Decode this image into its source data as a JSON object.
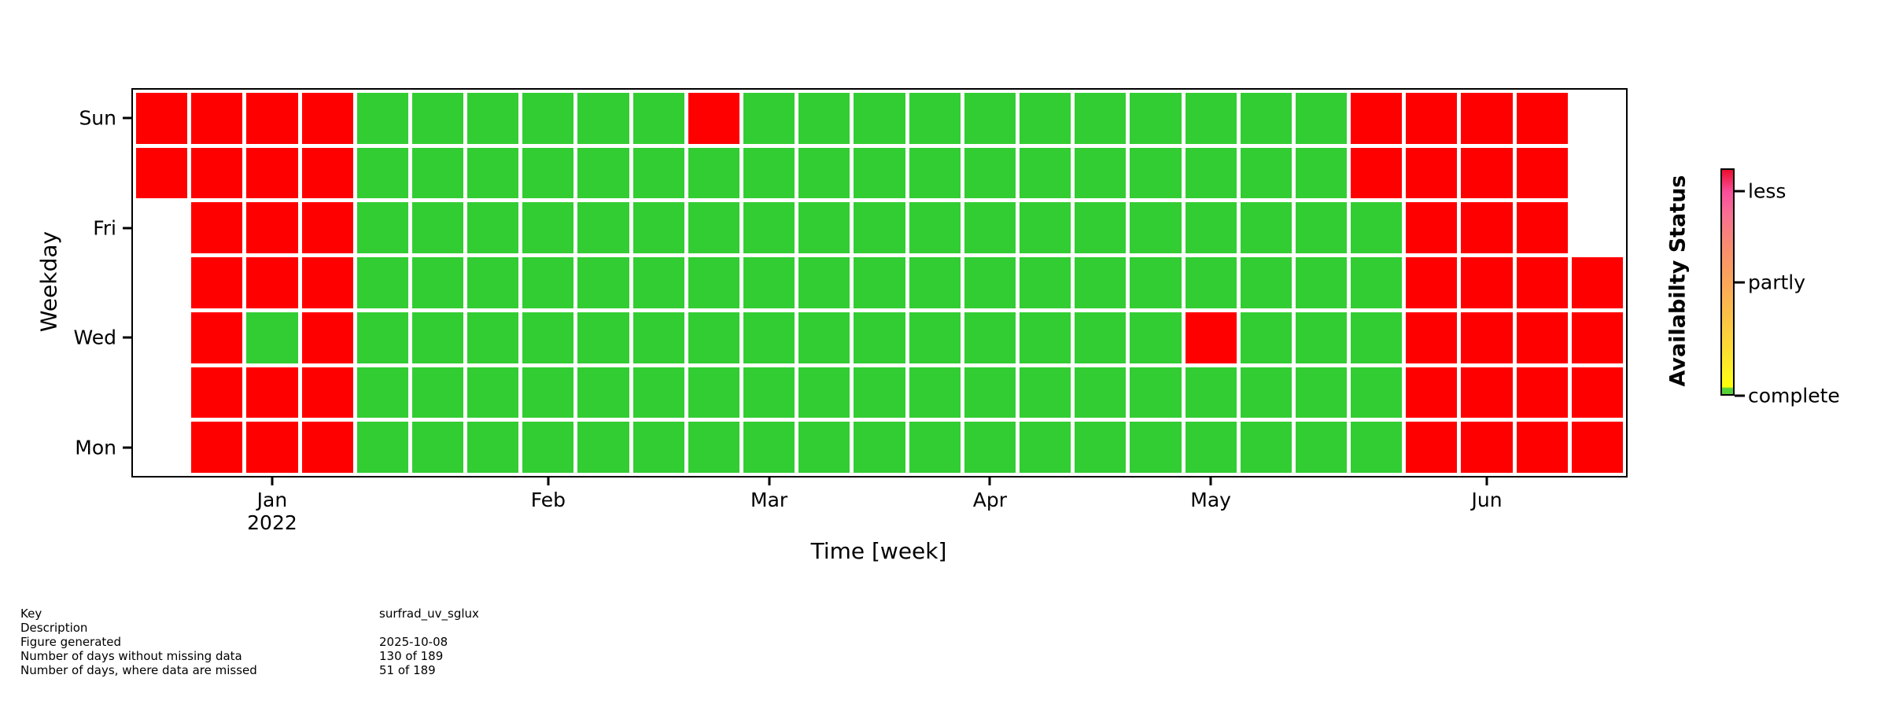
{
  "plot": {
    "x_axis": {
      "label": "Time [week]",
      "ticks": [
        {
          "label": "Jan",
          "sublabel": "2022",
          "col": 2
        },
        {
          "label": "Feb",
          "col": 7
        },
        {
          "label": "Mar",
          "col": 11
        },
        {
          "label": "Apr",
          "col": 15
        },
        {
          "label": "May",
          "col": 19
        },
        {
          "label": "Jun",
          "col": 24
        }
      ]
    },
    "y_axis": {
      "label": "Weekday",
      "ticks": [
        {
          "label": "Sun",
          "row": 0
        },
        {
          "label": "Fri",
          "row": 2
        },
        {
          "label": "Wed",
          "row": 4
        },
        {
          "label": "Mon",
          "row": 6
        }
      ]
    },
    "grid": {
      "columns": 27,
      "row_names": [
        "Sun",
        "Sat",
        "Fri",
        "Thu",
        "Wed",
        "Tue",
        "Mon"
      ],
      "rows": [
        "RRRRGGGGGGRGGGGGGGGGGGRRRR.",
        "RRRRGGGGGGGGGGGGGGGGGGRRRR.",
        ".RRRGGGGGGGGGGGGGGGGGGGRRR.",
        ".RRRGGGGGGGGGGGGGGGGGGGRRRR",
        ".RGRGGGGGGGGGGGGGGGRGGGRRRR",
        ".RRRGGGGGGGGGGGGGGGGGGGRRRR",
        ".RRRGGGGGGGGGGGGGGGGGGGRRRR"
      ],
      "colors": {
        "G": "#32cd32",
        "R": "#ff0000"
      }
    }
  },
  "colorbar": {
    "label": "Availabilty Status",
    "ticks": [
      {
        "label": "less",
        "pos": 0.1
      },
      {
        "label": "partly",
        "pos": 0.5
      },
      {
        "label": "complete",
        "pos": 1.0
      }
    ],
    "gradient": [
      [
        "#ed0e2e",
        "0%"
      ],
      [
        "#f94f9d",
        "10%"
      ],
      [
        "#f96f92",
        "20%"
      ],
      [
        "#f98e6d",
        "35%"
      ],
      [
        "#faa65a",
        "50%"
      ],
      [
        "#fbc147",
        "65%"
      ],
      [
        "#fcdc33",
        "80%"
      ],
      [
        "#fdf51d",
        "92%"
      ],
      [
        "#feff05",
        "96.8%"
      ],
      [
        "#5ad338",
        "97.4%"
      ],
      [
        "#55cf35",
        "100%"
      ]
    ]
  },
  "footer": {
    "rows": [
      {
        "label": "Key",
        "value": "surfrad_uv_sglux"
      },
      {
        "label": "Description",
        "value": ""
      },
      {
        "label": "Figure generated",
        "value": "2025-10-08"
      },
      {
        "label": "Number of days without missing data",
        "value": "130 of 189"
      },
      {
        "label": "Number of days, where data are missed",
        "value": "51 of 189"
      }
    ]
  },
  "chart_data": {
    "type": "heatmap",
    "subtype": "calendar-availability",
    "title": "",
    "xlabel": "Time [week]",
    "ylabel": "Weekday",
    "x_range": "weeks from 2022-01-01 through early Jul 2022 (27 week columns)",
    "x_tick_labels": [
      "Jan 2022",
      "Feb",
      "Mar",
      "Apr",
      "May",
      "Jun"
    ],
    "x_tick_week_columns": [
      2,
      7,
      11,
      15,
      19,
      24
    ],
    "y_tick_labels": [
      "Sun",
      "Fri",
      "Wed",
      "Mon"
    ],
    "weekday_rows_top_to_bottom": [
      "Sun",
      "Sat",
      "Fri",
      "Thu",
      "Wed",
      "Tue",
      "Mon"
    ],
    "cell_status_by_row": [
      "RRRRGGGGGGRGGGGGGGGGGGRRRR.",
      "RRRRGGGGGGGGGGGGGGGGGGRRRR.",
      ".RRRGGGGGGGGGGGGGGGGGGGRRR.",
      ".RRRGGGGGGGGGGGGGGGGGGGRRRR",
      ".RGRGGGGGGGGGGGGGGGRGGGRRRR",
      ".RRRGGGGGGGGGGGGGGGGGGGRRRR",
      ".RRRGGGGGGGGGGGGGGGGGGGRRRR"
    ],
    "cell_legend": {
      "G": "complete / no missing data (green #32cd32)",
      "R": "data missed (red #ff0000)",
      ".": "outside data range (blank)"
    },
    "colorbar": {
      "label": "Availabilty Status",
      "tick_labels_top_to_bottom": [
        "less",
        "partly",
        "complete"
      ],
      "gradient_top_to_bottom": [
        "red",
        "pink",
        "salmon",
        "orange",
        "yellow",
        "green sliver at bottom"
      ]
    },
    "legend_position": "right colorbar",
    "grid_lines": "white gaps between cells",
    "stats": {
      "key": "surfrad_uv_sglux",
      "figure_generated": "2025-10-08",
      "days_without_missing_data": "130 of 189",
      "days_with_missed_data": "51 of 189"
    }
  }
}
